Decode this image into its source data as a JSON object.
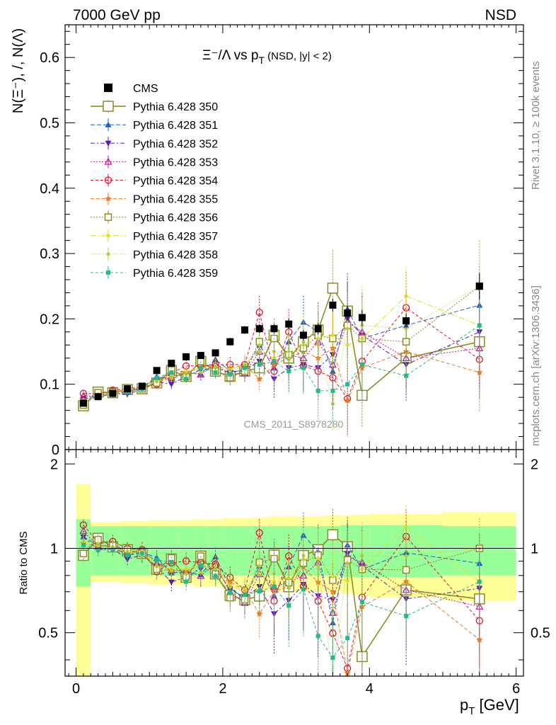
{
  "header": {
    "left": "7000 GeV pp",
    "right": "NSD"
  },
  "side_labels": {
    "rivet": "Rivet 3.1.10, ≥ 100k events",
    "mcplots": "mcplots.cern.ch [arXiv:1306.3436]"
  },
  "colors": {
    "cms": "#000000",
    "s350": "#8c8c28",
    "s351": "#1f5fbf",
    "s352": "#5a1ab0",
    "s353": "#c0189a",
    "s354": "#dd1133",
    "s355": "#ee7722",
    "s356": "#8c8c28",
    "s357": "#dddd22",
    "s358": "#bbcc33",
    "s359": "#22bb88",
    "band_inner": "#99ff99",
    "band_outer": "#ffff99"
  },
  "chart_data": {
    "type": "scatter",
    "title": "Ξ⁻/Λ  vs p_T (NSD, |y| < 2)",
    "title_main": "Ξ⁻/Λ  vs p",
    "title_sub": "T",
    "title_tail": " (NSD, |y| < 2)",
    "ylabel": "N(Ξ⁻), /, N(Λ)",
    "xlabel": "p_T [GeV]",
    "xlabel_main": "p",
    "xlabel_sub": "T",
    "xlabel_tail": " [GeV]",
    "ratio_ylabel": "Ratio to CMS",
    "watermark": "CMS_2011_S8978280",
    "xlim": [
      -0.15,
      6.1
    ],
    "ylim": [
      0,
      0.65
    ],
    "ratio_ylim": [
      0.35,
      2.25
    ],
    "x_ticks": [
      "0",
      "2",
      "4",
      "6"
    ],
    "y_ticks": [
      "0",
      "0.1",
      "0.2",
      "0.3",
      "0.4",
      "0.5",
      "0.6"
    ],
    "ratio_y_ticks": [
      "0.5",
      "1",
      "2"
    ],
    "legend_position": "top-left",
    "x": [
      0.1,
      0.3,
      0.5,
      0.7,
      0.9,
      1.1,
      1.3,
      1.5,
      1.7,
      1.9,
      2.1,
      2.3,
      2.5,
      2.7,
      2.9,
      3.1,
      3.3,
      3.5,
      3.7,
      3.9,
      4.5,
      5.5
    ],
    "reference": {
      "name": "CMS",
      "values": [
        0.071,
        0.081,
        0.086,
        0.093,
        0.097,
        0.121,
        0.132,
        0.142,
        0.144,
        0.148,
        0.165,
        0.183,
        0.185,
        0.185,
        0.192,
        0.175,
        0.185,
        0.221,
        0.209,
        0.202,
        0.197,
        0.25
      ],
      "errors": [
        0.003,
        0.003,
        0.003,
        0.003,
        0.003,
        0.004,
        0.004,
        0.005,
        0.005,
        0.005,
        0.006,
        0.006,
        0.007,
        0.007,
        0.008,
        0.008,
        0.009,
        0.01,
        0.011,
        0.012,
        0.011,
        0.02
      ]
    },
    "ratio_band": {
      "inner": [
        0.27,
        0.2,
        0.2,
        0.2,
        0.2,
        0.2,
        0.2,
        0.2,
        0.2,
        0.2,
        0.2,
        0.2,
        0.2,
        0.2,
        0.2,
        0.2,
        0.2,
        0.2,
        0.21,
        0.21,
        0.21,
        0.2
      ],
      "outer": [
        0.7,
        0.24,
        0.24,
        0.25,
        0.25,
        0.26,
        0.26,
        0.26,
        0.27,
        0.27,
        0.28,
        0.28,
        0.29,
        0.3,
        0.3,
        0.3,
        0.3,
        0.31,
        0.31,
        0.32,
        0.33,
        0.35
      ]
    },
    "series": [
      {
        "name": "Pythia 6.428 350",
        "color": "#8c8c28",
        "marker": "square-open",
        "dash": "",
        "size": 7,
        "width": 1.6,
        "values": [
          0.067,
          0.088,
          0.087,
          0.092,
          0.093,
          0.102,
          0.121,
          0.112,
          0.135,
          0.12,
          0.112,
          0.12,
          0.125,
          0.175,
          0.14,
          0.165,
          0.183,
          0.247,
          0.212,
          0.083,
          0.14,
          0.165
        ],
        "errors": [
          0.004,
          0.004,
          0.005,
          0.005,
          0.006,
          0.007,
          0.008,
          0.009,
          0.01,
          0.011,
          0.012,
          0.014,
          0.016,
          0.018,
          0.02,
          0.022,
          0.028,
          0.058,
          0.05,
          0.05,
          0.045,
          0.06
        ]
      },
      {
        "name": "Pythia 6.428 351",
        "color": "#1f5fbf",
        "marker": "triangle-up",
        "dash": "6,3",
        "size": 4.5,
        "width": 1,
        "values": [
          0.078,
          0.083,
          0.087,
          0.088,
          0.094,
          0.112,
          0.108,
          0.117,
          0.116,
          0.138,
          0.12,
          0.12,
          0.16,
          0.125,
          0.165,
          0.195,
          0.18,
          0.12,
          0.215,
          0.17,
          0.19,
          0.221
        ],
        "errors": [
          0.004,
          0.004,
          0.005,
          0.005,
          0.006,
          0.007,
          0.008,
          0.009,
          0.01,
          0.011,
          0.012,
          0.015,
          0.02,
          0.03,
          0.035,
          0.04,
          0.045,
          0.05,
          0.055,
          0.06,
          0.055,
          0.06
        ]
      },
      {
        "name": "Pythia 6.428 352",
        "color": "#5a1ab0",
        "marker": "triangle-down",
        "dash": "6,3,2,3",
        "size": 4.5,
        "width": 1,
        "values": [
          0.078,
          0.08,
          0.086,
          0.085,
          0.092,
          0.104,
          0.1,
          0.112,
          0.122,
          0.125,
          0.118,
          0.122,
          0.135,
          0.108,
          0.125,
          0.13,
          0.125,
          0.145,
          0.2,
          0.175,
          0.13,
          0.18
        ],
        "errors": [
          0.004,
          0.004,
          0.005,
          0.005,
          0.006,
          0.007,
          0.008,
          0.009,
          0.01,
          0.011,
          0.012,
          0.015,
          0.02,
          0.03,
          0.035,
          0.04,
          0.045,
          0.05,
          0.055,
          0.06,
          0.055,
          0.06
        ]
      },
      {
        "name": "Pythia 6.428 353",
        "color": "#c0189a",
        "marker": "triangle-open",
        "dash": "2,2",
        "size": 4.5,
        "width": 1,
        "values": [
          0.082,
          0.082,
          0.089,
          0.089,
          0.096,
          0.107,
          0.11,
          0.118,
          0.115,
          0.13,
          0.115,
          0.117,
          0.15,
          0.135,
          0.145,
          0.14,
          0.165,
          0.13,
          0.195,
          0.18,
          0.14,
          0.155
        ],
        "errors": [
          0.004,
          0.004,
          0.005,
          0.005,
          0.006,
          0.007,
          0.008,
          0.009,
          0.01,
          0.011,
          0.012,
          0.015,
          0.02,
          0.03,
          0.035,
          0.04,
          0.045,
          0.05,
          0.055,
          0.06,
          0.055,
          0.06
        ]
      },
      {
        "name": "Pythia 6.428 354",
        "color": "#dd1133",
        "marker": "circle-open",
        "dash": "4,3",
        "size": 4.5,
        "width": 1,
        "values": [
          0.086,
          0.085,
          0.091,
          0.093,
          0.096,
          0.1,
          0.117,
          0.128,
          0.128,
          0.13,
          0.13,
          0.13,
          0.21,
          0.12,
          0.18,
          0.128,
          0.12,
          0.11,
          0.078,
          0.135,
          0.217,
          0.138
        ],
        "errors": [
          0.004,
          0.004,
          0.005,
          0.005,
          0.006,
          0.007,
          0.008,
          0.009,
          0.01,
          0.011,
          0.012,
          0.015,
          0.025,
          0.03,
          0.035,
          0.04,
          0.045,
          0.05,
          0.055,
          0.06,
          0.055,
          0.06
        ]
      },
      {
        "name": "Pythia 6.428 355",
        "color": "#ee7722",
        "marker": "star",
        "dash": "5,3",
        "size": 5,
        "width": 1,
        "values": [
          0.074,
          0.082,
          0.088,
          0.09,
          0.094,
          0.102,
          0.11,
          0.118,
          0.125,
          0.125,
          0.125,
          0.13,
          0.108,
          0.13,
          0.14,
          0.15,
          0.14,
          0.155,
          0.075,
          0.125,
          0.15,
          0.118
        ],
        "errors": [
          0.004,
          0.004,
          0.005,
          0.005,
          0.006,
          0.007,
          0.008,
          0.009,
          0.01,
          0.011,
          0.012,
          0.015,
          0.02,
          0.03,
          0.035,
          0.04,
          0.045,
          0.05,
          0.055,
          0.06,
          0.055,
          0.06
        ]
      },
      {
        "name": "Pythia 6.428 356",
        "color": "#8c8c28",
        "marker": "square-open-small",
        "dash": "2,2",
        "size": 4.5,
        "width": 1,
        "values": [
          0.068,
          0.087,
          0.088,
          0.092,
          0.093,
          0.102,
          0.122,
          0.112,
          0.135,
          0.12,
          0.11,
          0.12,
          0.165,
          0.17,
          0.145,
          0.155,
          0.175,
          0.17,
          0.19,
          0.17,
          0.165,
          0.25
        ],
        "errors": [
          0.004,
          0.004,
          0.005,
          0.005,
          0.006,
          0.007,
          0.008,
          0.009,
          0.01,
          0.011,
          0.012,
          0.015,
          0.02,
          0.03,
          0.035,
          0.04,
          0.045,
          0.05,
          0.055,
          0.06,
          0.055,
          0.07
        ]
      },
      {
        "name": "Pythia 6.428 357",
        "color": "#dddd22",
        "marker": "dot",
        "dash": "8,3,2,3",
        "size": 2.5,
        "width": 1,
        "values": [
          0.075,
          0.083,
          0.086,
          0.091,
          0.095,
          0.104,
          0.112,
          0.12,
          0.125,
          0.128,
          0.122,
          0.13,
          0.15,
          0.14,
          0.15,
          0.16,
          0.17,
          0.175,
          0.16,
          0.17,
          0.235,
          0.19
        ],
        "errors": [
          0.004,
          0.004,
          0.005,
          0.005,
          0.006,
          0.007,
          0.008,
          0.009,
          0.01,
          0.011,
          0.012,
          0.015,
          0.02,
          0.03,
          0.035,
          0.04,
          0.045,
          0.05,
          0.055,
          0.06,
          0.045,
          0.06
        ]
      },
      {
        "name": "Pythia 6.428 358",
        "color": "#bbcc33",
        "marker": "dot",
        "dash": "1,2",
        "size": 2.5,
        "width": 1,
        "values": [
          0.076,
          0.084,
          0.087,
          0.09,
          0.094,
          0.105,
          0.11,
          0.115,
          0.118,
          0.125,
          0.12,
          0.128,
          0.16,
          0.15,
          0.14,
          0.165,
          0.16,
          0.07,
          0.185,
          0.19,
          0.185,
          0.25
        ],
        "errors": [
          0.004,
          0.004,
          0.005,
          0.005,
          0.006,
          0.007,
          0.008,
          0.009,
          0.01,
          0.011,
          0.012,
          0.015,
          0.02,
          0.03,
          0.035,
          0.04,
          0.045,
          0.04,
          0.055,
          0.06,
          0.055,
          0.07
        ]
      },
      {
        "name": "Pythia 6.428 359",
        "color": "#22bb88",
        "marker": "square-filled-small",
        "dash": "4,3",
        "size": 3,
        "width": 1,
        "values": [
          0.073,
          0.08,
          0.085,
          0.088,
          0.093,
          0.11,
          0.118,
          0.108,
          0.125,
          0.118,
          0.115,
          0.125,
          0.13,
          0.135,
          0.12,
          0.125,
          0.09,
          0.09,
          0.1,
          0.13,
          0.113,
          0.19
        ],
        "errors": [
          0.004,
          0.004,
          0.005,
          0.005,
          0.006,
          0.007,
          0.008,
          0.009,
          0.01,
          0.011,
          0.012,
          0.015,
          0.02,
          0.03,
          0.035,
          0.04,
          0.045,
          0.05,
          0.055,
          0.06,
          0.03,
          0.06
        ]
      }
    ]
  }
}
